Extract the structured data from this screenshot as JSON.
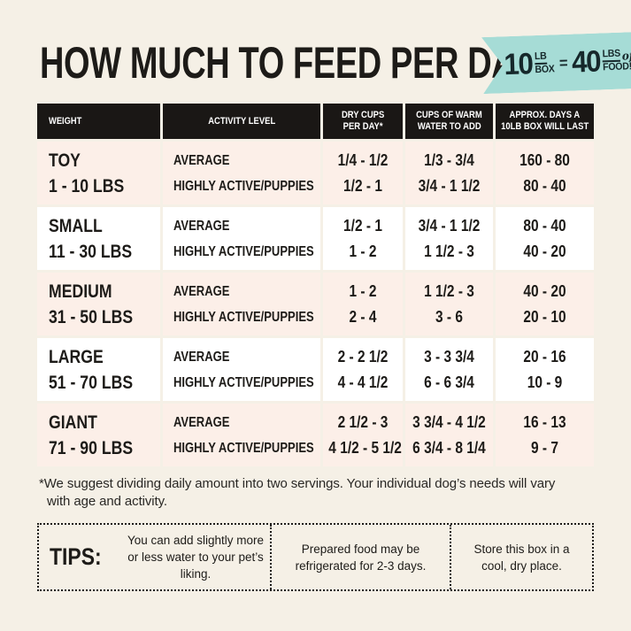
{
  "title": "HOW MUCH TO FEED PER DAY",
  "badge": {
    "qty1": "10",
    "unit1_top": "LB",
    "unit1_bottom": "BOX",
    "equals": "=",
    "qty2": "40",
    "unit2_top": "LBS",
    "unit2_script": "of",
    "unit2_bottom": "FOOD!"
  },
  "table": {
    "headers": [
      {
        "line1": "WEIGHT"
      },
      {
        "line1": "ACTIVITY LEVEL"
      },
      {
        "line1": "DRY CUPS",
        "line2": "PER DAY*"
      },
      {
        "line1": "CUPS OF WARM",
        "line2": "WATER TO ADD"
      },
      {
        "line1": "APPROX. DAYS A",
        "line2": "10LB BOX WILL LAST"
      }
    ],
    "activity_labels": {
      "average": "AVERAGE",
      "active": "HIGHLY ACTIVE/PUPPIES"
    },
    "rows": [
      {
        "size": "TOY",
        "range": "1 - 10 LBS",
        "average": {
          "dry": "1/4 - 1/2",
          "water": "1/3 - 3/4",
          "days": "160 - 80"
        },
        "active": {
          "dry": "1/2 - 1",
          "water": "3/4 - 1 1/2",
          "days": "80 - 40"
        }
      },
      {
        "size": "SMALL",
        "range": "11 - 30 LBS",
        "average": {
          "dry": "1/2 - 1",
          "water": "3/4 - 1 1/2",
          "days": "80 - 40"
        },
        "active": {
          "dry": "1 - 2",
          "water": "1 1/2 - 3",
          "days": "40 - 20"
        }
      },
      {
        "size": "MEDIUM",
        "range": "31 - 50 LBS",
        "average": {
          "dry": "1 - 2",
          "water": "1 1/2 - 3",
          "days": "40 - 20"
        },
        "active": {
          "dry": "2 - 4",
          "water": "3 - 6",
          "days": "20 - 10"
        }
      },
      {
        "size": "LARGE",
        "range": "51 - 70 LBS",
        "average": {
          "dry": "2 - 2 1/2",
          "water": "3 - 3 3/4",
          "days": "20 - 16"
        },
        "active": {
          "dry": "4 - 4 1/2",
          "water": "6 - 6 3/4",
          "days": "10 - 9"
        }
      },
      {
        "size": "GIANT",
        "range": "71 - 90 LBS",
        "average": {
          "dry": "2 1/2 - 3",
          "water": "3 3/4 - 4 1/2",
          "days": "16 - 13"
        },
        "active": {
          "dry": "4 1/2 - 5 1/2",
          "water": "6 3/4 - 8 1/4",
          "days": "9 - 7"
        }
      }
    ]
  },
  "footnote": {
    "line1": "*We suggest dividing daily amount into two servings. Your individual dog’s needs will vary",
    "line2": "with age and activity."
  },
  "tips": {
    "label": "TIPS:",
    "items": [
      "You can add slightly more or less water to your pet’s liking.",
      "Prepared food may be refrigerated for 2-3 days.",
      "Store this box in a cool, dry place."
    ]
  },
  "colors": {
    "page_bg": "#f5f0e6",
    "table_header_bg": "#1a1715",
    "table_header_text": "#ffffff",
    "row_pink": "#fcefe8",
    "row_white": "#ffffff",
    "badge_bg": "#a6dcd6",
    "badge_text": "#16282b",
    "text": "#1d1b18"
  }
}
